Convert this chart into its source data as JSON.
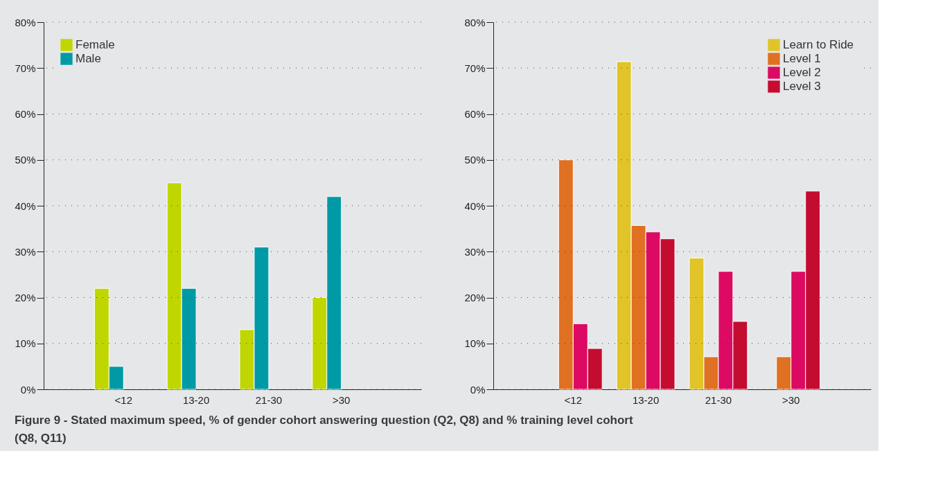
{
  "chart_data": [
    {
      "type": "bar",
      "categories": [
        "<12",
        "13-20",
        "21-30",
        ">30"
      ],
      "series": [
        {
          "name": "Female",
          "color": "#c0d600",
          "values": [
            22,
            45,
            13,
            20
          ]
        },
        {
          "name": "Male",
          "color": "#009aa6",
          "values": [
            5,
            22,
            31,
            42
          ]
        }
      ],
      "ylim": [
        0,
        80
      ],
      "yticks": [
        {
          "value": 0,
          "label": "0%"
        },
        {
          "value": 10,
          "label": "10%"
        },
        {
          "value": 20,
          "label": "20%"
        },
        {
          "value": 30,
          "label": "30%"
        },
        {
          "value": 40,
          "label": "40%"
        },
        {
          "value": 50,
          "label": "50%"
        },
        {
          "value": 60,
          "label": "60%"
        },
        {
          "value": 70,
          "label": "70%"
        },
        {
          "value": 80,
          "label": "80%"
        }
      ],
      "grid": "y",
      "legend": "top left"
    },
    {
      "type": "bar",
      "categories": [
        "<12",
        "13-20",
        "21-30",
        ">30"
      ],
      "series": [
        {
          "name": "Learn to Ride",
          "color": "#e0c428",
          "values": [
            null,
            71.4,
            28.6,
            null
          ]
        },
        {
          "name": "Level 1",
          "color": "#e07022",
          "values": [
            50,
            35.7,
            7.1,
            7.1
          ]
        },
        {
          "name": "Level 2",
          "color": "#dc0a62",
          "values": [
            14.3,
            34.3,
            25.7,
            25.7
          ]
        },
        {
          "name": "Level 3",
          "color": "#c40c30",
          "values": [
            8.9,
            32.8,
            14.8,
            43.2
          ]
        }
      ],
      "ylim": [
        0,
        80
      ],
      "yticks": [
        {
          "value": 0,
          "label": "0%"
        },
        {
          "value": 10,
          "label": "10%"
        },
        {
          "value": 20,
          "label": "20%"
        },
        {
          "value": 30,
          "label": "30%"
        },
        {
          "value": 40,
          "label": "40%"
        },
        {
          "value": 50,
          "label": "50%"
        },
        {
          "value": 60,
          "label": "60%"
        },
        {
          "value": 70,
          "label": "70%"
        },
        {
          "value": 80,
          "label": "80%"
        }
      ],
      "grid": "y",
      "legend": "top right",
      "annotations": [
        "Figure 9 - Stated maximum speed, % of gender cohort answering question (Q2, Q8) and % training level cohort (Q8, Q11)"
      ]
    }
  ]
}
